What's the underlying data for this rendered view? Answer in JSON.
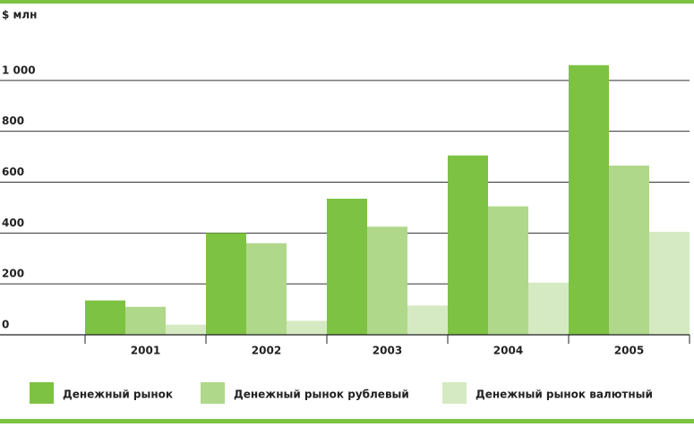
{
  "chart_data": {
    "type": "bar",
    "y_axis_label": "$ млн",
    "categories": [
      "2001",
      "2002",
      "2003",
      "2004",
      "2005"
    ],
    "series": [
      {
        "name": "Денежный рынок",
        "color": "#7dc242",
        "values": [
          135,
          400,
          535,
          705,
          1060
        ]
      },
      {
        "name": "Денежный рынок рублевый",
        "color": "#b0d88a",
        "values": [
          110,
          360,
          425,
          505,
          665
        ]
      },
      {
        "name": "Денежный рынок валютный",
        "color": "#d5eac2",
        "values": [
          40,
          55,
          115,
          205,
          405
        ]
      }
    ],
    "ylim": [
      0,
      1200
    ],
    "yticks": [
      0,
      200,
      400,
      600,
      800,
      {
        "value": 1000,
        "label": "1 000"
      }
    ],
    "grid": true,
    "legend": "bottom"
  }
}
